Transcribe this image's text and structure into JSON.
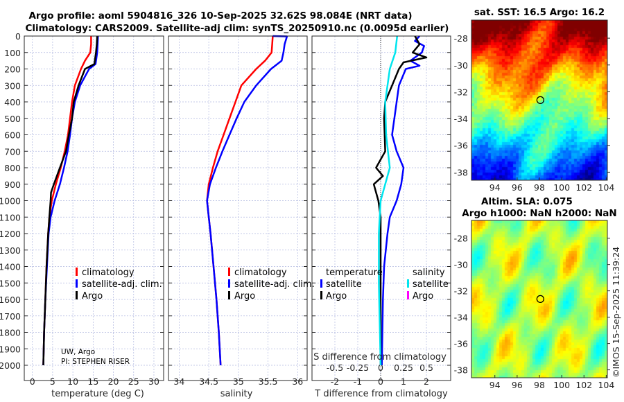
{
  "title": {
    "line1": "Argo profile: aoml 5904816_326 10-Sep-2025 32.62S 98.084E (NRT data)",
    "line2": "Climatology: CARS2009. Satellite-adj clim: synTS_20250910.nc (0.0095d earlier)"
  },
  "colors": {
    "climatology": "#ff0000",
    "satellite": "#0000ff",
    "argo": "#000000",
    "sal_satellite": "#00e5ee",
    "sal_argo": "#ff00ff",
    "grid": "#b0b8e0"
  },
  "credit": {
    "line1": "UW, Argo",
    "line2": "PI: STEPHEN RISER"
  },
  "stamp": "©IMOS 15-Sep-2025 11:39:24",
  "chart_data": [
    {
      "type": "line",
      "name": "temperature",
      "xlabel": "temperature (deg C)",
      "xlim": [
        -2,
        32.4
      ],
      "ylim": [
        2050,
        0
      ],
      "xticks": [
        0,
        5,
        10,
        15,
        20,
        25,
        30
      ],
      "yticks": [
        0,
        100,
        200,
        300,
        400,
        500,
        600,
        700,
        800,
        900,
        1000,
        1100,
        1200,
        1300,
        1400,
        1500,
        1600,
        1700,
        1800,
        1900,
        2000
      ],
      "legend": [
        "climatology",
        "satellite-adj. clim.",
        "Argo"
      ],
      "series": [
        {
          "name": "climatology",
          "color": "#ff0000",
          "depth": [
            0,
            50,
            100,
            150,
            200,
            300,
            400,
            500,
            600,
            700,
            800,
            900,
            1000,
            1100,
            1200,
            1400,
            1600,
            1800,
            2000
          ],
          "values": [
            14.5,
            14.5,
            14.3,
            13,
            12,
            10.5,
            9.8,
            9.3,
            8.8,
            8,
            7,
            5.8,
            4.8,
            4.2,
            3.9,
            3.5,
            3.2,
            2.9,
            2.7
          ]
        },
        {
          "name": "satellite-adj. clim.",
          "color": "#0000ff",
          "depth": [
            0,
            50,
            100,
            170,
            200,
            300,
            400,
            500,
            600,
            700,
            800,
            900,
            1000,
            1100,
            1200,
            1400,
            1600,
            1800,
            2000
          ],
          "values": [
            16.2,
            16.1,
            16,
            15.6,
            14,
            11.8,
            10.5,
            9.8,
            9.3,
            8.7,
            7.8,
            6.8,
            5.5,
            4.5,
            4,
            3.6,
            3.2,
            2.9,
            2.7
          ]
        },
        {
          "name": "Argo",
          "color": "#000000",
          "depth": [
            0,
            50,
            100,
            170,
            200,
            300,
            400,
            500,
            600,
            700,
            800,
            900,
            950,
            1000,
            1100,
            1200,
            1400,
            1600,
            1800,
            2000
          ],
          "values": [
            16,
            15.9,
            15.7,
            15.3,
            13,
            11.4,
            10.2,
            9.8,
            9,
            8.3,
            6.8,
            5.3,
            4.6,
            4.5,
            4.2,
            3.9,
            3.5,
            3.2,
            2.9,
            2.7
          ]
        }
      ]
    },
    {
      "type": "line",
      "name": "salinity",
      "xlabel": "salinity",
      "xlim": [
        33.82,
        36.16
      ],
      "ylim": [
        2050,
        0
      ],
      "xticks": [
        34,
        34.5,
        35,
        35.5,
        36
      ],
      "legend": [
        "climatology",
        "satellite-adj. clim.",
        "Argo"
      ],
      "series": [
        {
          "name": "climatology",
          "color": "#ff0000",
          "depth": [
            0,
            50,
            100,
            150,
            200,
            300,
            400,
            500,
            600,
            700,
            800,
            900,
            1000,
            1100,
            1200,
            1400,
            1600,
            1800,
            2000
          ],
          "values": [
            35.58,
            35.57,
            35.56,
            35.45,
            35.3,
            35.05,
            34.95,
            34.85,
            34.75,
            34.65,
            34.57,
            34.5,
            34.47,
            34.5,
            34.53,
            34.58,
            34.63,
            34.67,
            34.7
          ]
        },
        {
          "name": "satellite-adj. clim.",
          "color": "#0000ff",
          "depth": [
            0,
            2,
            50,
            100,
            150,
            200,
            300,
            400,
            500,
            600,
            700,
            800,
            900,
            1000,
            1100,
            1200,
            1400,
            1600,
            1800,
            2000
          ],
          "values": [
            35.58,
            35.82,
            35.78,
            35.76,
            35.73,
            35.55,
            35.3,
            35.1,
            34.97,
            34.85,
            34.73,
            34.62,
            34.52,
            34.47,
            34.5,
            34.53,
            34.58,
            34.63,
            34.67,
            34.7
          ]
        }
      ]
    },
    {
      "type": "line",
      "name": "difference",
      "xlabel": "T difference from climatology",
      "xlabel_top": "S difference from climatology",
      "xlim": [
        -3,
        3.06
      ],
      "ylim": [
        2050,
        0
      ],
      "xticks": [
        -2,
        -1,
        0,
        1,
        2
      ],
      "xticks_s": [
        -0.5,
        -0.25,
        0,
        0.25,
        0.5
      ],
      "legend_t_title": "temperature",
      "legend_s_title": "salinity",
      "legend_t": [
        "satellite",
        "Argo"
      ],
      "legend_s": [
        "satellite",
        "Argo"
      ],
      "series": [
        {
          "name": "T satellite",
          "color": "#0000ff",
          "depth": [
            0,
            30,
            60,
            100,
            150,
            180,
            200,
            300,
            400,
            500,
            600,
            700,
            800,
            900,
            1000,
            1100,
            1200,
            1400,
            1600,
            2000
          ],
          "values": [
            1.7,
            1.5,
            1.9,
            1.8,
            1.3,
            1.7,
            1.1,
            0.8,
            0.7,
            0.6,
            0.5,
            0.7,
            1.0,
            0.9,
            0.7,
            0.4,
            0.3,
            0.15,
            0.1,
            0.05
          ]
        },
        {
          "name": "T Argo",
          "color": "#000000",
          "depth": [
            0,
            50,
            100,
            130,
            160,
            200,
            300,
            400,
            500,
            700,
            800,
            850,
            900,
            1000,
            1100,
            1400,
            2000
          ],
          "values": [
            1.5,
            1.7,
            1.4,
            2.0,
            1.0,
            0.8,
            0.5,
            0.2,
            0.15,
            0.2,
            -0.2,
            0.1,
            -0.3,
            -0.1,
            0,
            0,
            0
          ]
        },
        {
          "name": "S satellite",
          "color": "#00e5ee",
          "depth": [
            0,
            100,
            200,
            400,
            600,
            800,
            900,
            1000,
            1200,
            1500,
            2000
          ],
          "values": [
            0.18,
            0.16,
            0.1,
            0.05,
            0.06,
            0.1,
            0.05,
            0,
            -0.02,
            -0.02,
            0
          ]
        }
      ]
    },
    {
      "type": "heatmap",
      "name": "sst-map",
      "title": "sat. SST: 16.5 Argo: 16.2",
      "xlim": [
        91.9,
        104.1
      ],
      "ylim": [
        -38.6,
        -26.65
      ],
      "xticks": [
        94,
        96,
        98,
        100,
        102,
        104
      ],
      "yticks": [
        -28,
        -30,
        -32,
        -34,
        -36,
        -38
      ],
      "marker": {
        "lon": 98.084,
        "lat": -32.62
      }
    },
    {
      "type": "heatmap",
      "name": "sla-map",
      "title": "Altim. SLA: 0.075",
      "subtitle": "Argo h1000: NaN h2000: NaN",
      "xlim": [
        91.9,
        104.1
      ],
      "ylim": [
        -38.6,
        -26.65
      ],
      "xticks": [
        94,
        96,
        98,
        100,
        102,
        104
      ],
      "yticks": [
        -28,
        -30,
        -32,
        -34,
        -36,
        -38
      ],
      "marker": {
        "lon": 98.084,
        "lat": -32.62
      }
    }
  ]
}
